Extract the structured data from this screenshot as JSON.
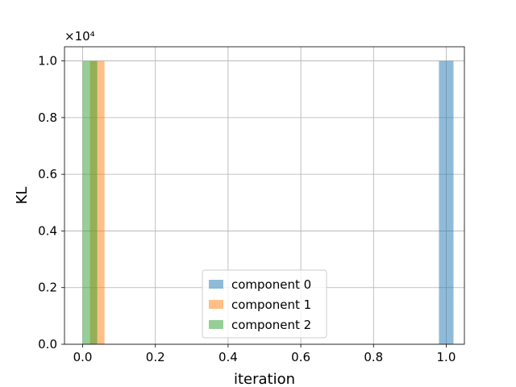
{
  "chart_data": {
    "type": "bar",
    "title": "",
    "xlabel": "iteration",
    "ylabel": "KL",
    "y_offset_text": "×10⁴",
    "y_scale_exponent": 4,
    "xlim": [
      -0.05,
      1.05
    ],
    "ylim": [
      0,
      10500
    ],
    "xticks": [
      0.0,
      0.2,
      0.4,
      0.6,
      0.8,
      1.0
    ],
    "xtick_labels": [
      "0.0",
      "0.2",
      "0.4",
      "0.6",
      "0.8",
      "1.0"
    ],
    "yticks": [
      0,
      2000,
      4000,
      6000,
      8000,
      10000
    ],
    "ytick_labels": [
      "0.0",
      "0.2",
      "0.4",
      "0.6",
      "0.8",
      "1.0"
    ],
    "grid": true,
    "legend_position": "lower center",
    "bar_width": 0.04,
    "series": [
      {
        "name": "component 0",
        "color": "#1f77b4",
        "alpha": 0.5,
        "bars": [
          {
            "x": 0.98,
            "value": 10000
          }
        ]
      },
      {
        "name": "component 1",
        "color": "#ff7f0e",
        "alpha": 0.5,
        "bars": [
          {
            "x": 0.02,
            "value": 10000
          }
        ]
      },
      {
        "name": "component 2",
        "color": "#2ca02c",
        "alpha": 0.5,
        "bars": [
          {
            "x": 0.0,
            "value": 10000
          }
        ]
      }
    ]
  }
}
